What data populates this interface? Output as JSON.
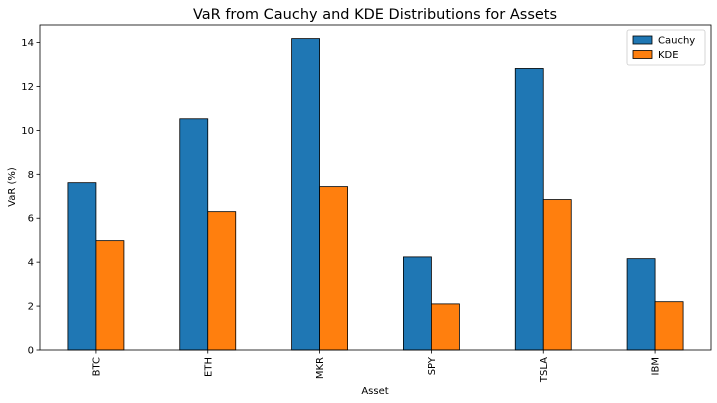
{
  "chart_data": {
    "type": "bar",
    "title": "VaR from Cauchy and KDE Distributions for Assets",
    "xlabel": "Asset",
    "ylabel": "VaR (%)",
    "categories": [
      "BTC",
      "ETH",
      "MKR",
      "SPY",
      "TSLA",
      "IBM"
    ],
    "series": [
      {
        "name": "Cauchy",
        "color": "#1f77b4",
        "values": [
          7.62,
          10.53,
          14.18,
          4.24,
          12.82,
          4.16
        ]
      },
      {
        "name": "KDE",
        "color": "#ff7f0e",
        "values": [
          4.98,
          6.3,
          7.44,
          2.1,
          6.85,
          2.2
        ]
      }
    ],
    "ylim": [
      0,
      14.8
    ],
    "yticks": [
      0,
      2,
      4,
      6,
      8,
      10,
      12,
      14
    ],
    "grid": false,
    "legend_position": "top-right"
  }
}
